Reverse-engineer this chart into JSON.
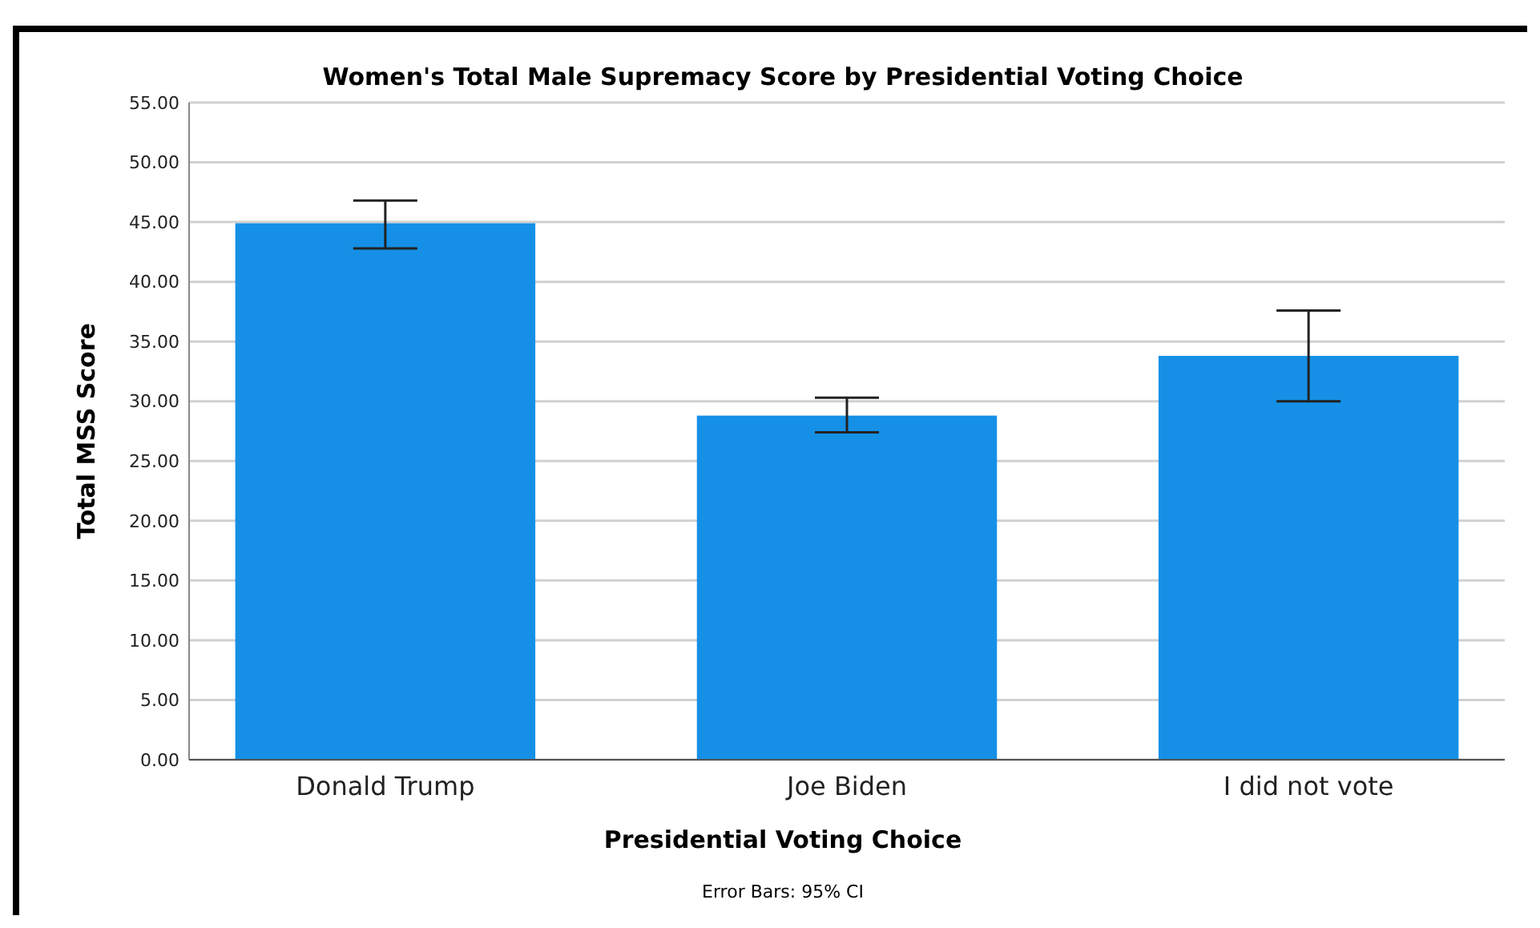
{
  "chart_data": {
    "type": "bar",
    "title": "Women's Total Male Supremacy Score by Presidential Voting Choice",
    "xlabel": "Presidential Voting Choice",
    "ylabel": "Total MSS Score",
    "categories": [
      "Donald Trump",
      "Joe Biden",
      "I did not vote"
    ],
    "values": [
      44.9,
      28.8,
      33.8
    ],
    "color": "#1590e6",
    "errors": [
      [
        42.8,
        46.8
      ],
      [
        27.4,
        30.3
      ],
      [
        30.0,
        37.6
      ]
    ],
    "ylim": [
      0,
      55
    ],
    "yticks": [
      {
        "value": 0,
        "label": "0.00"
      },
      {
        "value": 5,
        "label": "5.00"
      },
      {
        "value": 10,
        "label": "10.00"
      },
      {
        "value": 15,
        "label": "15.00"
      },
      {
        "value": 20,
        "label": "20.00"
      },
      {
        "value": 25,
        "label": "25.00"
      },
      {
        "value": 30,
        "label": "30.00"
      },
      {
        "value": 35,
        "label": "35.00"
      },
      {
        "value": 40,
        "label": "40.00"
      },
      {
        "value": 45,
        "label": "45.00"
      },
      {
        "value": 50,
        "label": "50.00"
      },
      {
        "value": 55,
        "label": "55.00"
      }
    ],
    "grid": "y",
    "annotations": [
      "Error Bars: 95% CI"
    ]
  }
}
